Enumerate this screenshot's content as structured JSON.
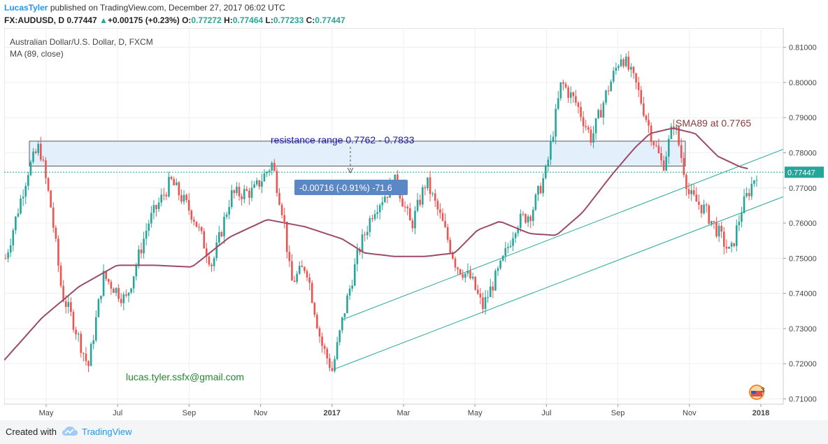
{
  "header": {
    "author": "LucasTyler",
    "published_text": "published on TradingView.com, December 27, 2017 06:02 UTC",
    "symbol": "FX:AUDUSD, D",
    "last": "0.77447",
    "change_arrow": "▲",
    "change": "+0.00175 (+0.23%)",
    "o_label": "O:",
    "o_value": "0.77272",
    "h_label": "H:",
    "h_value": "0.77464",
    "l_label": "L:",
    "l_value": "0.77233",
    "c_label": "C:",
    "c_value": "0.77447"
  },
  "legend": {
    "series_title": "Australian Dollar/U.S. Dollar, D, FXCM",
    "indicator": "MA (89, close)"
  },
  "annotations": {
    "resistance_label": "resistance range 0.7762 - 0.7833",
    "measure_label": "-0.00716 (-0.91%) -71.6",
    "sma_label": "SMA89 at 0.7765",
    "email": "lucas.tyler.ssfx@gmail.com",
    "badge_count": "3"
  },
  "footer": {
    "created_with": "Created with",
    "brand": "TradingView"
  },
  "colors": {
    "up": "#26a69a",
    "down": "#ef5350",
    "ma": "#9c4a6a",
    "zone": "#e3f0fc",
    "channel": "#26a69a",
    "price_label_bg": "#26a69a",
    "measure_bg": "#5b87c4"
  },
  "chart_data": {
    "type": "candlestick",
    "x_labels": [
      "May",
      "Jul",
      "Sep",
      "Nov",
      "2017",
      "Mar",
      "May",
      "Jul",
      "Sep",
      "Nov",
      "2018"
    ],
    "y_ticks": [
      "0.81000",
      "0.80000",
      "0.79000",
      "0.78000",
      "0.77000",
      "0.76000",
      "0.75000",
      "0.74000",
      "0.73000",
      "0.72000",
      "0.71000"
    ],
    "ylim": [
      0.7085,
      0.8155
    ],
    "last_price": 0.77447,
    "last_price_label": "0.77447",
    "resistance_zone": [
      0.7762,
      0.7833
    ],
    "close_path": [
      [
        0,
        0.75
      ],
      [
        0.03,
        0.775
      ],
      [
        0.045,
        0.782
      ],
      [
        0.06,
        0.765
      ],
      [
        0.075,
        0.74
      ],
      [
        0.09,
        0.732
      ],
      [
        0.11,
        0.719
      ],
      [
        0.13,
        0.745
      ],
      [
        0.16,
        0.738
      ],
      [
        0.19,
        0.76
      ],
      [
        0.22,
        0.772
      ],
      [
        0.25,
        0.762
      ],
      [
        0.275,
        0.748
      ],
      [
        0.3,
        0.768
      ],
      [
        0.33,
        0.769
      ],
      [
        0.355,
        0.777
      ],
      [
        0.37,
        0.762
      ],
      [
        0.38,
        0.743
      ],
      [
        0.4,
        0.748
      ],
      [
        0.42,
        0.726
      ],
      [
        0.435,
        0.718
      ],
      [
        0.45,
        0.734
      ],
      [
        0.47,
        0.752
      ],
      [
        0.49,
        0.764
      ],
      [
        0.52,
        0.772
      ],
      [
        0.54,
        0.759
      ],
      [
        0.56,
        0.772
      ],
      [
        0.58,
        0.761
      ],
      [
        0.6,
        0.748
      ],
      [
        0.62,
        0.744
      ],
      [
        0.635,
        0.736
      ],
      [
        0.66,
        0.748
      ],
      [
        0.68,
        0.76
      ],
      [
        0.7,
        0.763
      ],
      [
        0.72,
        0.775
      ],
      [
        0.74,
        0.8
      ],
      [
        0.76,
        0.794
      ],
      [
        0.78,
        0.784
      ],
      [
        0.8,
        0.797
      ],
      [
        0.82,
        0.808
      ],
      [
        0.84,
        0.799
      ],
      [
        0.86,
        0.785
      ],
      [
        0.875,
        0.776
      ],
      [
        0.89,
        0.789
      ],
      [
        0.91,
        0.768
      ],
      [
        0.93,
        0.764
      ],
      [
        0.95,
        0.757
      ],
      [
        0.965,
        0.751
      ],
      [
        0.98,
        0.764
      ],
      [
        1.0,
        0.77447
      ]
    ],
    "sma89_path": [
      [
        0,
        0.721
      ],
      [
        0.05,
        0.733
      ],
      [
        0.1,
        0.742
      ],
      [
        0.15,
        0.748
      ],
      [
        0.2,
        0.748
      ],
      [
        0.25,
        0.7475
      ],
      [
        0.3,
        0.756
      ],
      [
        0.35,
        0.761
      ],
      [
        0.4,
        0.759
      ],
      [
        0.45,
        0.7555
      ],
      [
        0.48,
        0.7515
      ],
      [
        0.52,
        0.7505
      ],
      [
        0.56,
        0.7505
      ],
      [
        0.6,
        0.7515
      ],
      [
        0.63,
        0.758
      ],
      [
        0.66,
        0.7605
      ],
      [
        0.7,
        0.757
      ],
      [
        0.735,
        0.7565
      ],
      [
        0.77,
        0.763
      ],
      [
        0.81,
        0.774
      ],
      [
        0.84,
        0.7815
      ],
      [
        0.86,
        0.7855
      ],
      [
        0.89,
        0.787
      ],
      [
        0.92,
        0.7855
      ],
      [
        0.95,
        0.779
      ],
      [
        0.98,
        0.776
      ],
      [
        0.99,
        0.7755
      ]
    ],
    "channel_lines": [
      {
        "from": [
          0.44,
          0.7185
        ],
        "to": [
          1.0,
          0.7675
        ]
      },
      {
        "from": [
          0.45,
          0.7325
        ],
        "to": [
          1.0,
          0.781
        ]
      }
    ]
  }
}
